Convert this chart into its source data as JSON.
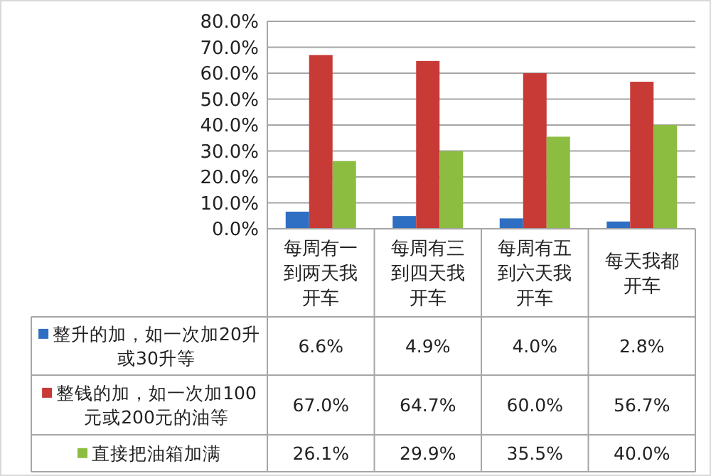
{
  "chart_data": {
    "type": "bar",
    "categories": [
      "每周有一到两天我开车",
      "每周有三到四天我开车",
      "每周有五到六天我开车",
      "每天我都开车"
    ],
    "series": [
      {
        "name": "整升的加，如一次加20升或30升等",
        "color": "#2e6fc4",
        "values": [
          6.6,
          4.9,
          4.0,
          2.8
        ],
        "value_labels": [
          "6.6%",
          "4.9%",
          "4.0%",
          "2.8%"
        ]
      },
      {
        "name": "整钱的加，如一次加100元或200元的油等",
        "color": "#c83a36",
        "values": [
          67.0,
          64.7,
          60.0,
          56.7
        ],
        "value_labels": [
          "67.0%",
          "64.7%",
          "60.0%",
          "56.7%"
        ]
      },
      {
        "name": "直接把油箱加满",
        "color": "#8cbc40",
        "values": [
          26.1,
          29.9,
          35.5,
          40.0
        ],
        "value_labels": [
          "26.1%",
          "29.9%",
          "35.5%",
          "40.0%"
        ]
      }
    ],
    "ylim": [
      0,
      80
    ],
    "yticks": [
      {
        "value": 0,
        "label": "0.0%"
      },
      {
        "value": 10,
        "label": "10.0%"
      },
      {
        "value": 20,
        "label": "20.0%"
      },
      {
        "value": 30,
        "label": "30.0%"
      },
      {
        "value": 40,
        "label": "40.0%"
      },
      {
        "value": 50,
        "label": "50.0%"
      },
      {
        "value": 60,
        "label": "60.0%"
      },
      {
        "value": 70,
        "label": "70.0%"
      },
      {
        "value": 80,
        "label": "80.0%"
      }
    ],
    "grid": "y",
    "legend": "bottom"
  }
}
